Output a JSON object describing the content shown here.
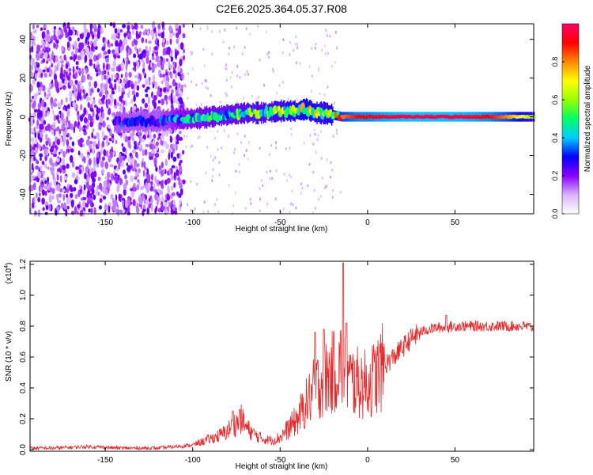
{
  "title": "C2E6.2025.364.05.37.R08",
  "chart_data": [
    {
      "type": "heatmap",
      "name": "spectrogram",
      "xlabel": "Height of straight line (km)",
      "ylabel": "Frequency (Hz)",
      "xlim": [
        -193,
        95
      ],
      "ylim": [
        -50,
        48
      ],
      "xticks": [
        -150,
        -100,
        -50,
        0,
        50
      ],
      "yticks": [
        -40,
        -20,
        0,
        20,
        40
      ],
      "colorbar": {
        "label": "Normalized spectral amplitude",
        "range": [
          0.0,
          1.0
        ],
        "ticks": [
          "0.0",
          "0.2",
          "0.4",
          "0.6",
          "0.8"
        ],
        "colors": [
          "#ffffff",
          "#d9b3ff",
          "#8800ff",
          "#0000ff",
          "#00ccff",
          "#00ff66",
          "#99ff00",
          "#ffff00",
          "#ff8800",
          "#ff0000",
          "#ff0066"
        ]
      },
      "ridge": {
        "x": [
          -145,
          -120,
          -110,
          -100,
          -90,
          -80,
          -70,
          -60,
          -50,
          -40,
          -35,
          -30,
          -25,
          -20,
          -15,
          -10,
          -5,
          0,
          10,
          20,
          30,
          40,
          50,
          60,
          70,
          80,
          95
        ],
        "freq": [
          -3,
          -2,
          -1,
          -1,
          0,
          1,
          2,
          2,
          3,
          3,
          4,
          2,
          2,
          1,
          0,
          0,
          0,
          0,
          0,
          0,
          0,
          0,
          0,
          0,
          0,
          0,
          0
        ],
        "amplitude": [
          0.3,
          0.3,
          0.4,
          0.45,
          0.5,
          0.5,
          0.55,
          0.55,
          0.6,
          0.65,
          0.7,
          0.65,
          0.6,
          0.7,
          0.8,
          0.85,
          0.9,
          0.9,
          0.95,
          0.98,
          0.98,
          0.98,
          0.97,
          0.95,
          0.9,
          0.8,
          0.6
        ]
      },
      "noise_region_x": [
        -193,
        -105
      ]
    },
    {
      "type": "line",
      "name": "snr",
      "xlabel": "Height of straight line (km)",
      "ylabel": "SNR (10 * v/v)",
      "multiplier": "(x10",
      "multiplier_exp": "4",
      "multiplier_close": ")",
      "xlim": [
        -193,
        95
      ],
      "ylim": [
        -0.01,
        1.22
      ],
      "xticks": [
        -150,
        -100,
        -50,
        0,
        50
      ],
      "yticks": [
        "0.0",
        "0.2",
        "0.4",
        "0.6",
        "0.8",
        "1.0",
        "1.2"
      ],
      "color": "#e8282a",
      "series": [
        {
          "name": "SNR",
          "x": [
            -193,
            -180,
            -160,
            -140,
            -120,
            -110,
            -100,
            -95,
            -90,
            -85,
            -80,
            -78,
            -75,
            -72,
            -70,
            -65,
            -60,
            -55,
            -50,
            -45,
            -40,
            -35,
            -30,
            -25,
            -20,
            -15,
            -13,
            -10,
            -5,
            0,
            5,
            10,
            15,
            20,
            25,
            30,
            35,
            40,
            45,
            50,
            60,
            70,
            80,
            90,
            95
          ],
          "y": [
            0.01,
            0.01,
            0.02,
            0.01,
            0.01,
            0.02,
            0.03,
            0.05,
            0.07,
            0.09,
            0.12,
            0.15,
            0.17,
            0.2,
            0.15,
            0.1,
            0.07,
            0.06,
            0.08,
            0.14,
            0.2,
            0.3,
            0.4,
            0.45,
            0.5,
            0.55,
            0.5,
            0.45,
            0.43,
            0.42,
            0.48,
            0.55,
            0.6,
            0.66,
            0.72,
            0.76,
            0.78,
            0.79,
            0.79,
            0.8,
            0.8,
            0.8,
            0.8,
            0.8,
            0.79
          ],
          "spikes": [
            {
              "x": -73,
              "y": 0.26
            },
            {
              "x": -77,
              "y": 0.25
            },
            {
              "x": -30,
              "y": 0.76
            },
            {
              "x": -25,
              "y": 0.78
            },
            {
              "x": -14,
              "y": 1.21
            },
            {
              "x": -12,
              "y": 0.82
            },
            {
              "x": 45,
              "y": 0.87
            }
          ]
        }
      ]
    }
  ]
}
